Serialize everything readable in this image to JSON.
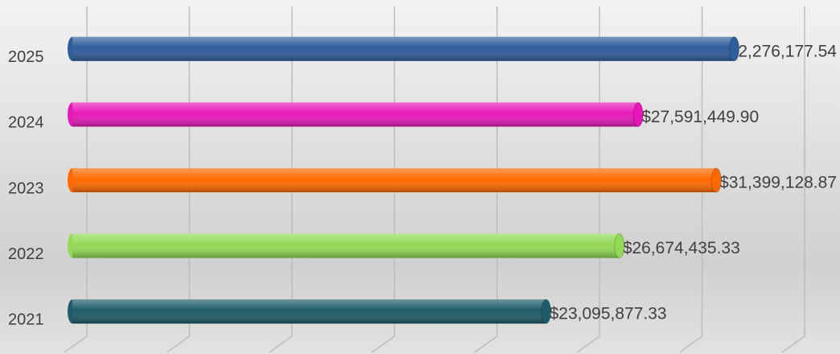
{
  "chart_data": {
    "type": "bar",
    "orientation": "horizontal",
    "categories": [
      "2021",
      "2022",
      "2023",
      "2024",
      "2025"
    ],
    "values": [
      23095877.33,
      26674435.33,
      31399128.87,
      27591449.9,
      32276177.54
    ],
    "value_labels": [
      "$23,095,877.33",
      "$26,674,435.33",
      "$31,399,128.87",
      "$27,591,449.90",
      "$32,276,177.54"
    ],
    "colors": [
      "#1f5b68",
      "#92d955",
      "#ff6a00",
      "#e619b8",
      "#2e5d9a"
    ],
    "xlim": [
      0,
      35000000
    ],
    "xticks": [
      0,
      5000000,
      10000000,
      15000000,
      20000000,
      25000000,
      30000000,
      35000000
    ],
    "grid": true
  }
}
